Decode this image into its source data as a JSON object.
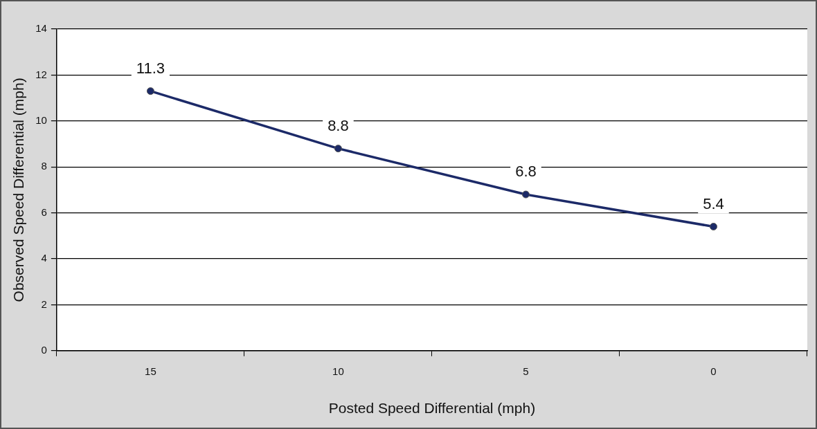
{
  "chart_data": {
    "type": "line",
    "xlabel": "Posted Speed Differential (mph)",
    "ylabel": "Observed Speed Differential (mph)",
    "categories": [
      "15",
      "10",
      "5",
      "0"
    ],
    "series": [
      {
        "color": "#1c2a68",
        "values": [
          11.3,
          8.8,
          6.8,
          5.4
        ]
      }
    ],
    "ylim": [
      0,
      14
    ],
    "yticks": [
      0,
      2,
      4,
      6,
      8,
      10,
      12,
      14
    ],
    "grid": "y",
    "legend": false,
    "marker": "circle",
    "line_style": "solid",
    "data_labels": true
  }
}
